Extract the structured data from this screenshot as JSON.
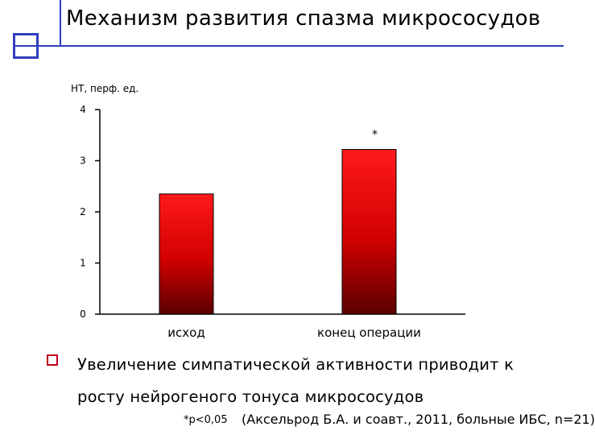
{
  "slide": {
    "title": "Механизм развития спазма микрососудов",
    "bullet_text": "Увеличение симпатической активности приводит к росту нейрогеного тонуса микрососудов",
    "footnote": "*p<0,05",
    "citation": "(Аксельрод Б.А. и соавт., 2011, больные ИБС, n=21)"
  },
  "colors": {
    "accent_blue": "#2f3fbf",
    "bar_top": "#ff1a1a",
    "bar_bottom": "#5a0000",
    "bullet_red": "#c0001c"
  },
  "chart_data": {
    "type": "bar",
    "title": "",
    "ylabel": "НТ, перф. ед.",
    "xlabel": "",
    "categories": [
      "исход",
      "конец операции"
    ],
    "values": [
      2.35,
      3.22
    ],
    "ylim": [
      0,
      4
    ],
    "yticks": [
      0,
      1,
      2,
      3,
      4
    ],
    "annotations": [
      {
        "category": "конец операции",
        "text": "*"
      }
    ],
    "grid": false,
    "legend": "none"
  }
}
